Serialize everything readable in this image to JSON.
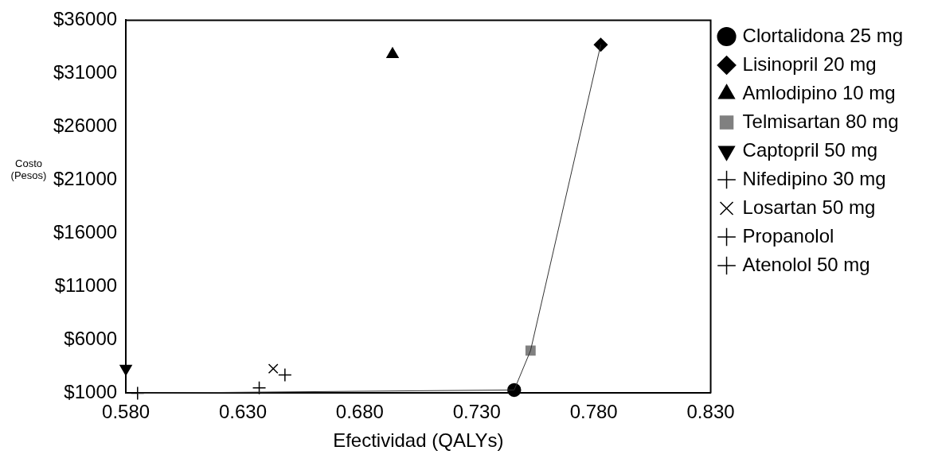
{
  "chart_data": {
    "type": "scatter",
    "xlabel": "Efectividad (QALYs)",
    "ylabel": "Costo (Pesos)",
    "xlim": [
      0.58,
      0.83
    ],
    "ylim": [
      1000,
      36000
    ],
    "xticks": [
      {
        "value": 0.58,
        "label": "0.580"
      },
      {
        "value": 0.63,
        "label": "0.630"
      },
      {
        "value": 0.68,
        "label": "0.680"
      },
      {
        "value": 0.73,
        "label": "0.730"
      },
      {
        "value": 0.78,
        "label": "0.780"
      },
      {
        "value": 0.83,
        "label": "0.830"
      }
    ],
    "yticks": [
      {
        "value": 1000,
        "label": "$1000"
      },
      {
        "value": 6000,
        "label": "$6000"
      },
      {
        "value": 11000,
        "label": "$11000"
      },
      {
        "value": 16000,
        "label": "$16000"
      },
      {
        "value": 21000,
        "label": "$21000"
      },
      {
        "value": 26000,
        "label": "$26000"
      },
      {
        "value": 31000,
        "label": "$31000"
      },
      {
        "value": 36000,
        "label": "$36000"
      }
    ],
    "grid": false,
    "legend": "right",
    "series": [
      {
        "type": "line",
        "color": "#333333",
        "marker": "none",
        "x": [
          0.585,
          0.746,
          0.753,
          0.783
        ],
        "values": [
          1000,
          1300,
          5000,
          33700
        ]
      },
      {
        "name": "Clortalidona 25 mg",
        "color": "#000000",
        "marker": "circle",
        "x": [
          0.746
        ],
        "values": [
          1300
        ]
      },
      {
        "name": "Lisinopril 20 mg",
        "color": "#000000",
        "marker": "diamond",
        "x": [
          0.783
        ],
        "values": [
          33700
        ]
      },
      {
        "name": "Amlodipino 10 mg",
        "color": "#000000",
        "marker": "triangle",
        "x": [
          0.694
        ],
        "values": [
          32800
        ]
      },
      {
        "name": "Telmisartan 80 mg",
        "color": "#808080",
        "marker": "square",
        "x": [
          0.753
        ],
        "values": [
          5000
        ]
      },
      {
        "name": "Captopril 50 mg",
        "color": "#000000",
        "marker": "triangle-down",
        "x": [
          0.58
        ],
        "values": [
          3300
        ]
      },
      {
        "name": "Nifedipino 30 mg",
        "color": "#000000",
        "marker": "cross",
        "x": [
          0.648
        ],
        "values": [
          2700
        ]
      },
      {
        "name": "Losartan 50 mg",
        "color": "#000000",
        "marker": "x",
        "x": [
          0.643
        ],
        "values": [
          3300
        ]
      },
      {
        "name": "Propanolol",
        "color": "#000000",
        "marker": "cross",
        "x": [
          0.637
        ],
        "values": [
          1500
        ]
      },
      {
        "name": "Atenolol 50 mg",
        "color": "#000000",
        "marker": "cross",
        "x": [
          0.585
        ],
        "values": [
          1000
        ]
      }
    ]
  }
}
